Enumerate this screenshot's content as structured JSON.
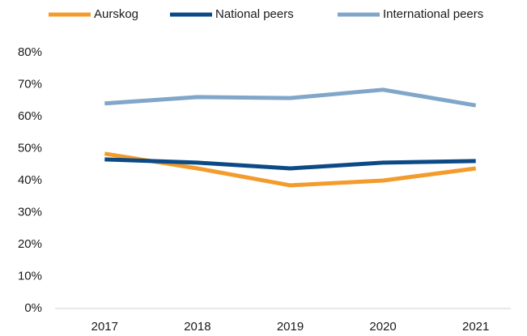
{
  "chart_data": {
    "type": "line",
    "categories": [
      "2017",
      "2018",
      "2019",
      "2020",
      "2021"
    ],
    "series": [
      {
        "name": "Aurskog",
        "color": "#f39b2b",
        "values": [
          48.4,
          43.8,
          38.5,
          40.0,
          43.8
        ]
      },
      {
        "name": "National peers",
        "color": "#0b4a85",
        "values": [
          46.6,
          45.6,
          43.8,
          45.6,
          46.1
        ]
      },
      {
        "name": "International peers",
        "color": "#80a6c9",
        "values": [
          64.1,
          66.1,
          65.8,
          68.4,
          63.5
        ]
      }
    ],
    "ylim": [
      0,
      80
    ],
    "yticks": [
      {
        "value": 0,
        "label": "0%"
      },
      {
        "value": 10,
        "label": "10%"
      },
      {
        "value": 20,
        "label": "20%"
      },
      {
        "value": 30,
        "label": "30%"
      },
      {
        "value": 40,
        "label": "40%"
      },
      {
        "value": 50,
        "label": "50%"
      },
      {
        "value": 60,
        "label": "60%"
      },
      {
        "value": 70,
        "label": "70%"
      },
      {
        "value": 80,
        "label": "80%"
      }
    ],
    "legend": "top"
  }
}
